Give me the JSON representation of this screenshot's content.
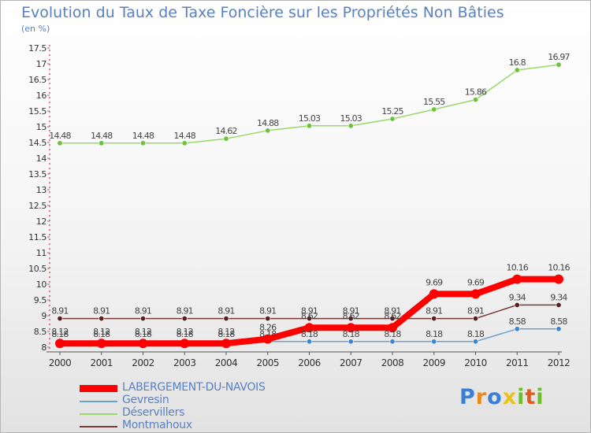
{
  "title": "Evolution du Taux de Taxe Foncière sur les Propriétés Non Bâties",
  "subtitle": "(en %)",
  "logo": {
    "text": "Proxiti",
    "colors": [
      "#3a7fd5",
      "#e88a1a",
      "#3a7fd5",
      "#e8c21a",
      "#6cbf2a",
      "#e85a1a",
      "#6cbf2a"
    ]
  },
  "chart_data": {
    "type": "line",
    "x": [
      "2000",
      "2001",
      "2002",
      "2003",
      "2004",
      "2005",
      "2006",
      "2007",
      "2008",
      "2009",
      "2010",
      "2011",
      "2012"
    ],
    "ylim": [
      8,
      17.5
    ],
    "yticks": [
      "8",
      "8.5",
      "9",
      "9.5",
      "10",
      "10.5",
      "11",
      "11.5",
      "12",
      "12.5",
      "13",
      "13.5",
      "14",
      "14.5",
      "15",
      "15.5",
      "16",
      "16.5",
      "17",
      "17.5"
    ],
    "grid": false,
    "legend_position": "bottom-left",
    "series": [
      {
        "name": "LABERGEMENT-DU-NAVOIS",
        "color": "#ff0000",
        "bold": true,
        "values": [
          8.12,
          8.12,
          8.12,
          8.12,
          8.12,
          8.26,
          8.62,
          8.62,
          8.62,
          9.69,
          9.69,
          10.16,
          10.16
        ],
        "labels": [
          "8.12",
          "8.12",
          "8.12",
          "8.12",
          "8.12",
          "8.26",
          "8.62",
          "8.62",
          "8.62",
          "9.69",
          "9.69",
          "10.16",
          "10.16"
        ]
      },
      {
        "name": "Gevresin",
        "color": "#6fa0cc",
        "marker": "#3a87d0",
        "values": [
          8.18,
          8.18,
          8.18,
          8.18,
          8.18,
          8.18,
          8.18,
          8.18,
          8.18,
          8.18,
          8.18,
          8.58,
          8.58
        ],
        "labels": [
          "8.18",
          "8.18",
          "8.18",
          "8.18",
          "8.18",
          "8.18",
          "8.18",
          "8.18",
          "8.18",
          "8.18",
          "8.18",
          "8.58",
          "8.58"
        ]
      },
      {
        "name": "Déservillers",
        "color": "#9ad86a",
        "marker": "#6cc23a",
        "values": [
          14.48,
          14.48,
          14.48,
          14.48,
          14.62,
          14.88,
          15.03,
          15.03,
          15.25,
          15.55,
          15.86,
          16.8,
          16.97
        ],
        "labels": [
          "14.48",
          "14.48",
          "14.48",
          "14.48",
          "14.62",
          "14.88",
          "15.03",
          "15.03",
          "15.25",
          "15.55",
          "15.86",
          "16.8",
          "16.97"
        ]
      },
      {
        "name": "Montmahoux",
        "color": "#7a3a3a",
        "marker": "#5a1e1e",
        "values": [
          8.91,
          8.91,
          8.91,
          8.91,
          8.91,
          8.91,
          8.91,
          8.91,
          8.91,
          8.91,
          8.91,
          9.34,
          9.34
        ],
        "labels": [
          "8.91",
          "8.91",
          "8.91",
          "8.91",
          "8.91",
          "8.91",
          "8.91",
          "8.91",
          "8.91",
          "8.91",
          "8.91",
          "9.34",
          "9.34"
        ]
      }
    ]
  }
}
